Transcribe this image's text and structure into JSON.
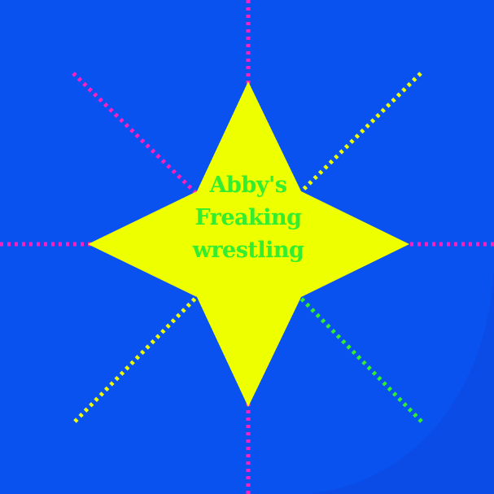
{
  "logo": {
    "line1": "Abby's",
    "line2": "Freaking",
    "line3": "wrestling"
  },
  "colors": {
    "background": "#0a52f0",
    "star": "#eeff00",
    "text": "#33ee2e",
    "ray_magenta": "#ff1fbf",
    "ray_yellow": "#eeff00",
    "ray_green": "#33ee2e"
  }
}
